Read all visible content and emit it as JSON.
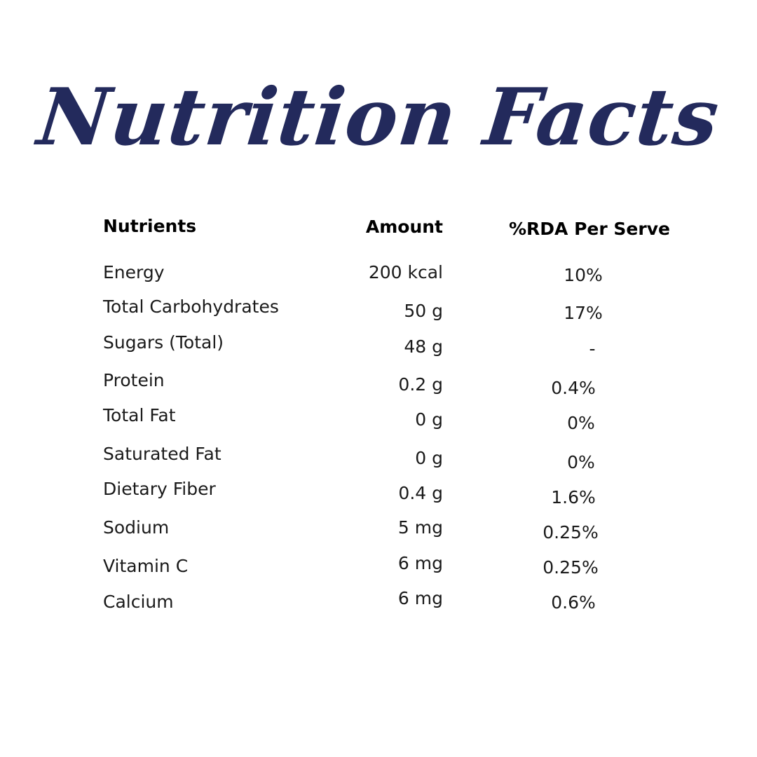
{
  "title": "Nutrition Facts",
  "headers": {
    "nutrients": "Nutrients",
    "amount": "Amount",
    "rda": "%RDA Per Serve"
  },
  "rows": [
    {
      "name": "Energy",
      "amount": "200 kcal",
      "rda": "10%"
    },
    {
      "name": "Total Carbohydrates",
      "amount": "50 g",
      "rda": "17%"
    },
    {
      "name": "Sugars (Total)",
      "amount": "48 g",
      "rda": "-"
    },
    {
      "name": "Protein",
      "amount": "0.2 g",
      "rda": "0.4%"
    },
    {
      "name": "Total Fat",
      "amount": "0 g",
      "rda": "0%"
    },
    {
      "name": "Saturated Fat",
      "amount": "0 g",
      "rda": "0%"
    },
    {
      "name": "Dietary Fiber",
      "amount": "0.4 g",
      "rda": "1.6%"
    },
    {
      "name": "Sodium",
      "amount": "5 mg",
      "rda": "0.25%"
    },
    {
      "name": "Vitamin C",
      "amount": "6 mg",
      "rda": "0.25%"
    },
    {
      "name": "Calcium",
      "amount": "6 mg",
      "rda": "0.6%"
    }
  ],
  "colors": {
    "title": "#232a5c",
    "text": "#1a1a1a",
    "background": "#ffffff"
  }
}
